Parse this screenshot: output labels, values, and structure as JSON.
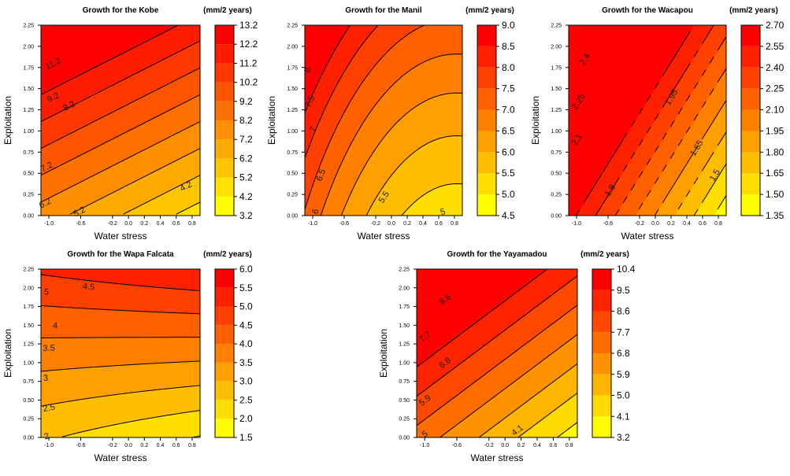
{
  "chart_data": [
    {
      "type": "contour",
      "title": "Growth for the Kobe",
      "legend_title": "(mm/2 years)",
      "xlabel": "Water stress",
      "ylabel": "Exploitation",
      "xlim": [
        -1.1,
        0.9
      ],
      "ylim": [
        0,
        2.25
      ],
      "x_ticks": [
        "-1.0",
        "-0.6",
        "-0.2",
        "0.0",
        "0.2",
        "0.4",
        "0.6",
        "0.8"
      ],
      "y_ticks": [
        "0.00",
        "0.25",
        "0.50",
        "0.75",
        "1.00",
        "1.25",
        "1.50",
        "1.75",
        "2.00",
        "2.25"
      ],
      "levels": [
        3.2,
        4.2,
        5.2,
        6.2,
        7.2,
        8.2,
        9.2,
        10.2,
        11.2,
        12.2,
        13.2
      ],
      "level_labels": [
        "3.2",
        "4.2",
        "5.2",
        "6.2",
        "7.2",
        "8.2",
        "9.2",
        "10.2",
        "11.2",
        "12.2",
        "13.2"
      ],
      "legend_tick_labels": [
        "3.2",
        "4.2",
        "5.2",
        "6.2",
        "7.2",
        "8.2",
        "9.2",
        "10.2",
        "11.2",
        "12.2",
        "13.2"
      ],
      "surface": {
        "c00": 6.05,
        "cx": -1.5,
        "cy": 3.15,
        "cxx": 0.0,
        "cxy": 0.0,
        "cyy": 0.0
      },
      "contour_labels": [
        {
          "text": "4.2",
          "x": 0.72,
          "y": 0.35
        },
        {
          "text": "5.2",
          "x": -0.62,
          "y": 0.05
        },
        {
          "text": "6.2",
          "x": -1.05,
          "y": 0.15
        },
        {
          "text": "7.2",
          "x": -1.03,
          "y": 0.58
        },
        {
          "text": "8.2",
          "x": -0.75,
          "y": 1.3
        },
        {
          "text": "9.2",
          "x": -0.95,
          "y": 1.4
        },
        {
          "text": "11.2",
          "x": -0.95,
          "y": 1.8
        }
      ]
    },
    {
      "type": "contour",
      "title": "Growth for the Manil",
      "legend_title": "(mm/2 years)",
      "xlabel": "Water stress",
      "ylabel": "Exploitation",
      "xlim": [
        -1.1,
        0.9
      ],
      "ylim": [
        0,
        2.25
      ],
      "x_ticks": [
        "-1.0",
        "-0.6",
        "-0.2",
        "0.0",
        "0.2",
        "0.4",
        "0.6",
        "0.8"
      ],
      "y_ticks": [
        "0.00",
        "0.25",
        "0.50",
        "0.75",
        "1.00",
        "1.25",
        "1.50",
        "1.75",
        "2.00",
        "2.25"
      ],
      "levels": [
        4.5,
        5.0,
        5.5,
        6.0,
        6.5,
        7.0,
        7.5,
        8.0,
        8.5,
        9.0
      ],
      "level_labels": [
        "4.5",
        "5",
        "5.5",
        "6",
        "6.5",
        "7",
        "7.5",
        "8",
        "8.5",
        "9"
      ],
      "legend_tick_labels": [
        "4.5",
        "5.0",
        "5.5",
        "6.0",
        "6.5",
        "7.0",
        "7.5",
        "8.0",
        "8.5",
        "9.0"
      ],
      "surface": {
        "c00": 5.62,
        "cx": -1.0,
        "cy": 0.75,
        "cxx": 0.6,
        "cxy": 0.0,
        "cyy": 0.1
      },
      "contour_labels": [
        {
          "text": "5",
          "x": 0.65,
          "y": 0.05
        },
        {
          "text": "5.5",
          "x": -0.1,
          "y": 0.22
        },
        {
          "text": "6",
          "x": -0.97,
          "y": 0.05
        },
        {
          "text": "6.5",
          "x": -0.9,
          "y": 0.48
        },
        {
          "text": "7",
          "x": -1.0,
          "y": 1.02
        },
        {
          "text": "7.5",
          "x": -1.04,
          "y": 1.35
        },
        {
          "text": "8",
          "x": -1.07,
          "y": 1.72
        }
      ]
    },
    {
      "type": "contour",
      "title": "Growth for the Wacapou",
      "legend_title": "(mm/2 years)",
      "xlabel": "Water stress",
      "ylabel": "Exploitation",
      "xlim": [
        -1.1,
        0.9
      ],
      "ylim": [
        0,
        2.25
      ],
      "x_ticks": [
        "-1.0",
        "-0.6",
        "-0.2",
        "0.0",
        "0.2",
        "0.4",
        "0.6",
        "0.8"
      ],
      "y_ticks": [
        "0.00",
        "0.25",
        "0.50",
        "0.75",
        "1.00",
        "1.25",
        "1.50",
        "1.75",
        "2.00",
        "2.25"
      ],
      "levels": [
        1.35,
        1.5,
        1.65,
        1.8,
        1.95,
        2.1,
        2.25,
        2.4,
        2.55,
        2.7
      ],
      "level_labels": [
        "1.35",
        "1.5",
        "1.65",
        "1.8",
        "1.95",
        "2.1",
        "2.25",
        "2.4",
        "2.55",
        "2.7"
      ],
      "legend_tick_labels": [
        "1.35",
        "1.50",
        "1.65",
        "1.80",
        "1.95",
        "2.10",
        "2.25",
        "2.40",
        "2.55",
        "2.70"
      ],
      "surface": {
        "c00": 1.945,
        "cx": -0.6,
        "cy": 0.4,
        "cxx": 0.0,
        "cxy": 0.0,
        "cyy": 0.0
      },
      "contour_labels": [
        {
          "text": "1.5",
          "x": 0.75,
          "y": 0.48
        },
        {
          "text": "1.65",
          "x": 0.52,
          "y": 0.8
        },
        {
          "text": "1.8",
          "x": -0.58,
          "y": 0.3
        },
        {
          "text": "1.95",
          "x": 0.2,
          "y": 1.4
        },
        {
          "text": "2.1",
          "x": -1.0,
          "y": 0.9
        },
        {
          "text": "2.25",
          "x": -0.98,
          "y": 1.35
        },
        {
          "text": "2.4",
          "x": -0.9,
          "y": 1.85
        }
      ]
    },
    {
      "type": "contour",
      "title": "Growth for the Wapa Falcata",
      "legend_title": "(mm/2 years)",
      "xlabel": "Water stress",
      "ylabel": "Exploitation",
      "xlim": [
        -1.1,
        0.9
      ],
      "ylim": [
        0,
        2.25
      ],
      "x_ticks": [
        "-1.0",
        "-0.6",
        "-0.2",
        "0.0",
        "0.2",
        "0.4",
        "0.6",
        "0.8"
      ],
      "y_ticks": [
        "0.00",
        "0.25",
        "0.50",
        "0.75",
        "1.00",
        "1.25",
        "1.50",
        "1.75",
        "2.00",
        "2.25"
      ],
      "levels": [
        1.5,
        2.0,
        2.5,
        3.0,
        3.5,
        4.0,
        4.5,
        5.0,
        5.5,
        6.0
      ],
      "level_labels": [
        "1.5",
        "2",
        "2.5",
        "3",
        "3.5",
        "4",
        "4.5",
        "5",
        "5.5",
        "6"
      ],
      "legend_tick_labels": [
        "1.5",
        "2.0",
        "2.5",
        "3.0",
        "3.5",
        "4.0",
        "4.5",
        "5.0",
        "5.5",
        "6.0"
      ],
      "surface": {
        "c00": 2.24,
        "cx": -0.3,
        "cy": 1.25,
        "cxx": 0.0,
        "cxy": 0.22,
        "cyy": 0.05
      },
      "contour_labels": [
        {
          "text": "2",
          "x": -1.03,
          "y": 0.02
        },
        {
          "text": "2.5",
          "x": -1.0,
          "y": 0.4
        },
        {
          "text": "3",
          "x": -1.04,
          "y": 0.8
        },
        {
          "text": "3.5",
          "x": -1.0,
          "y": 1.2
        },
        {
          "text": "4",
          "x": -0.92,
          "y": 1.5
        },
        {
          "text": "4.5",
          "x": -0.5,
          "y": 2.02
        },
        {
          "text": "5",
          "x": -1.03,
          "y": 1.95
        }
      ]
    },
    {
      "type": "contour",
      "title": "Growth for the Yayamadou",
      "legend_title": "(mm/2 years)",
      "xlabel": "Water stress",
      "ylabel": "Exploitation",
      "xlim": [
        -1.1,
        0.9
      ],
      "ylim": [
        0,
        2.25
      ],
      "x_ticks": [
        "-1.0",
        "-0.6",
        "-0.2",
        "0.0",
        "0.2",
        "0.4",
        "0.6",
        "0.8"
      ],
      "y_ticks": [
        "0.00",
        "0.25",
        "0.50",
        "0.75",
        "1.00",
        "1.25",
        "1.50",
        "1.75",
        "2.00",
        "2.25"
      ],
      "levels": [
        3.2,
        4.1,
        5.0,
        5.9,
        6.8,
        7.7,
        8.6,
        9.5,
        10.4
      ],
      "level_labels": [
        "3.2",
        "4.1",
        "5",
        "5.9",
        "6.8",
        "7.7",
        "8.6",
        "9.5",
        "10.4"
      ],
      "legend_tick_labels": [
        "3.2",
        "4.1",
        "5.0",
        "5.9",
        "6.8",
        "7.7",
        "8.6",
        "9.5",
        "10.4"
      ],
      "surface": {
        "c00": 5.3,
        "cx": -1.85,
        "cy": 2.3,
        "cxx": 0.0,
        "cxy": 0.0,
        "cyy": 0.0
      },
      "contour_labels": [
        {
          "text": "4.1",
          "x": 0.15,
          "y": 0.1
        },
        {
          "text": "5",
          "x": -1.0,
          "y": 0.05
        },
        {
          "text": "5.9",
          "x": -1.0,
          "y": 0.5
        },
        {
          "text": "6.8",
          "x": -0.75,
          "y": 1.0
        },
        {
          "text": "7.7",
          "x": -1.0,
          "y": 1.35
        },
        {
          "text": "8.6",
          "x": -0.75,
          "y": 1.85
        }
      ]
    }
  ]
}
